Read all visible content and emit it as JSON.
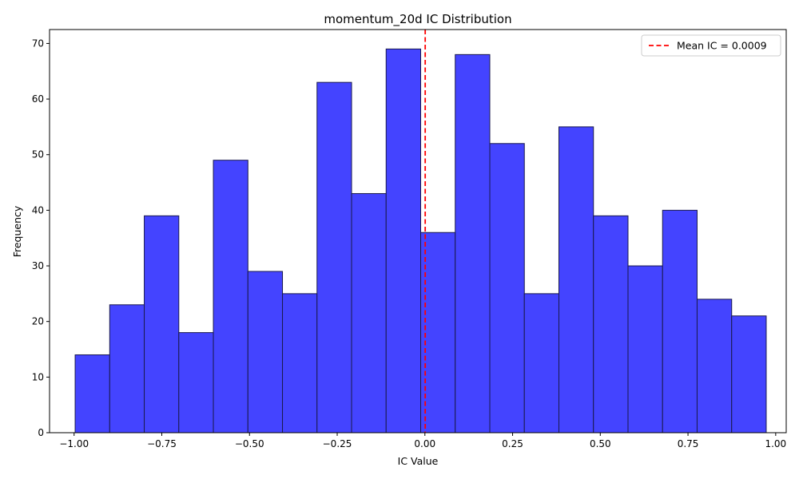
{
  "chart_data": {
    "type": "histogram",
    "title": "momentum_20d IC Distribution",
    "xlabel": "IC Value",
    "ylabel": "Frequency",
    "xlim": [
      -1.07,
      1.03
    ],
    "ylim": [
      0,
      72.5
    ],
    "x_ticks": [
      "−1.00",
      "−0.75",
      "−0.50",
      "−0.25",
      "0.00",
      "0.25",
      "0.50",
      "0.75",
      "1.00"
    ],
    "x_tick_values": [
      -1.0,
      -0.75,
      -0.5,
      -0.25,
      0.0,
      0.25,
      0.5,
      0.75,
      1.0
    ],
    "y_ticks": [
      "0",
      "10",
      "20",
      "30",
      "40",
      "50",
      "60",
      "70"
    ],
    "y_tick_values": [
      0,
      10,
      20,
      30,
      40,
      50,
      60,
      70
    ],
    "bin_edges": [
      -0.997,
      -0.8985,
      -0.8,
      -0.7015,
      -0.603,
      -0.5045,
      -0.406,
      -0.3075,
      -0.209,
      -0.1105,
      -0.012,
      0.0865,
      0.185,
      0.2835,
      0.382,
      0.4805,
      0.579,
      0.6775,
      0.776,
      0.8745,
      0.973
    ],
    "counts": [
      14,
      23,
      39,
      18,
      49,
      29,
      25,
      63,
      43,
      69,
      36,
      68,
      52,
      25,
      55,
      39,
      30,
      40,
      24,
      21
    ],
    "bar_color": "#4444ff",
    "bar_edge_color": "#1a1a4d",
    "mean_line": {
      "value": 0.0009,
      "color": "#ff0000",
      "style": "dashed"
    },
    "legend": {
      "label": "Mean IC = 0.0009",
      "placement": "upper-right"
    },
    "grid": false
  }
}
